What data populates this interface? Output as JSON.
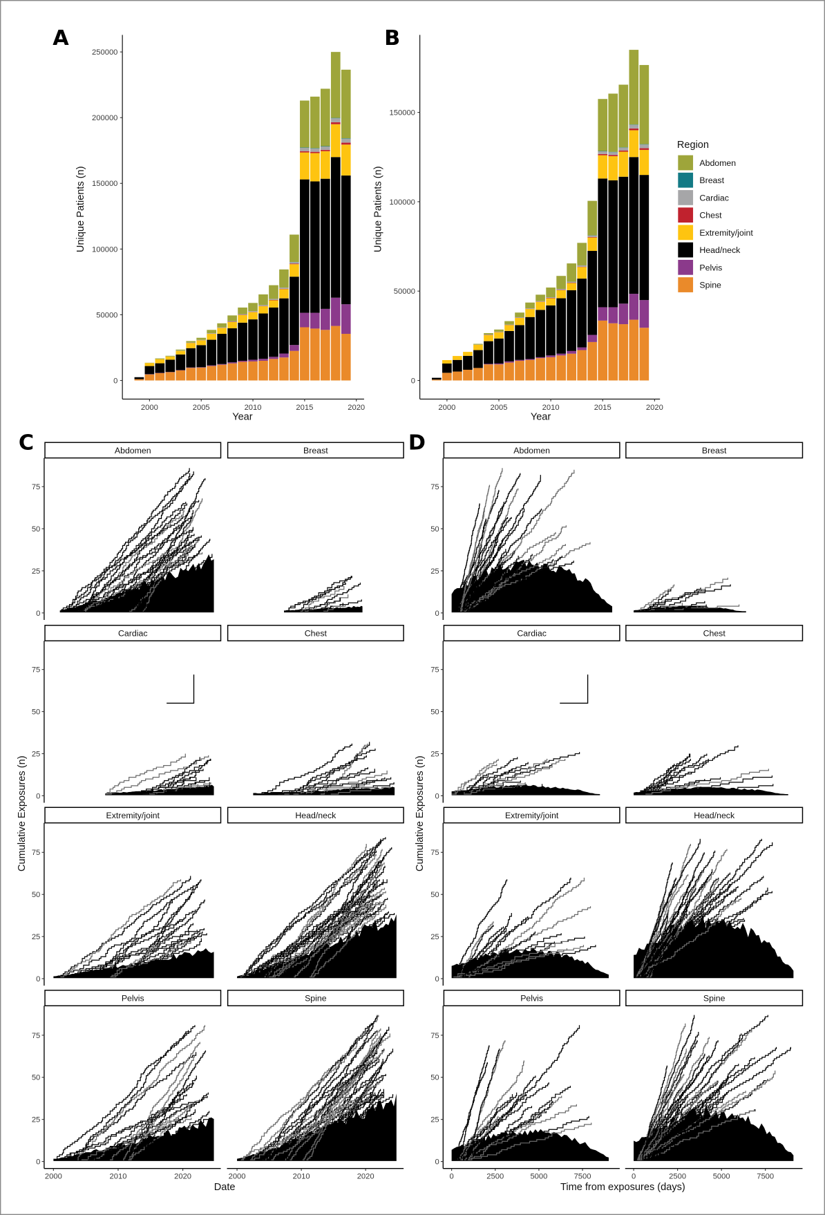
{
  "panel_letters": [
    "A",
    "B",
    "C",
    "D"
  ],
  "legend": {
    "title": "Region"
  },
  "chart_data": [
    {
      "id": "A",
      "type": "bar",
      "stacked": true,
      "xlabel": "Year",
      "ylabel": "Unique Patients (n)",
      "ylim": [
        0,
        250000
      ],
      "yticks": [
        0,
        50000,
        100000,
        150000,
        200000,
        250000
      ],
      "xticks": [
        2000,
        2005,
        2010,
        2015,
        2020
      ],
      "categories": [
        1999,
        2000,
        2001,
        2002,
        2003,
        2004,
        2005,
        2006,
        2007,
        2008,
        2009,
        2010,
        2011,
        2012,
        2013,
        2014,
        2015,
        2016,
        2017,
        2018,
        2019
      ],
      "series": [
        {
          "name": "Spine",
          "color": "#ea8a2a",
          "values": [
            1000,
            4600,
            5600,
            6300,
            7700,
            9600,
            9800,
            11000,
            12000,
            13000,
            14200,
            14500,
            15000,
            16400,
            17500,
            22500,
            40500,
            39500,
            38500,
            41500,
            35500
          ]
        },
        {
          "name": "Pelvis",
          "color": "#8b3a8b",
          "values": [
            0,
            200,
            200,
            200,
            200,
            300,
            300,
            500,
            500,
            800,
            800,
            1300,
            1500,
            1600,
            3000,
            4500,
            11000,
            12000,
            16000,
            21500,
            22500
          ]
        },
        {
          "name": "Head/neck",
          "color": "#000000",
          "values": [
            1500,
            6200,
            7300,
            9300,
            11900,
            14700,
            16800,
            19500,
            23000,
            25900,
            29000,
            30700,
            34500,
            37500,
            42000,
            52000,
            101500,
            100000,
            99000,
            107000,
            98000
          ]
        },
        {
          "name": "Extremity/joint",
          "color": "#fec410",
          "values": [
            0,
            2300,
            3100,
            2400,
            2700,
            3900,
            3600,
            4500,
            4500,
            4800,
            5800,
            5500,
            5500,
            5500,
            7000,
            9500,
            20500,
            21500,
            21000,
            25000,
            23500
          ]
        },
        {
          "name": "Chest",
          "color": "#c0222e",
          "values": [
            0,
            0,
            0,
            0,
            0,
            100,
            100,
            100,
            100,
            200,
            200,
            200,
            200,
            300,
            300,
            400,
            1000,
            1000,
            1000,
            1500,
            1500
          ]
        },
        {
          "name": "Cardiac",
          "color": "#a6a6a8",
          "values": [
            0,
            0,
            0,
            100,
            200,
            300,
            300,
            400,
            400,
            500,
            500,
            600,
            700,
            800,
            900,
            1200,
            2500,
            2500,
            2500,
            3000,
            3000
          ]
        },
        {
          "name": "Breast",
          "color": "#137a85",
          "values": [
            0,
            0,
            0,
            0,
            0,
            0,
            0,
            0,
            0,
            0,
            0,
            0,
            0,
            0,
            0,
            100,
            300,
            300,
            300,
            300,
            300
          ]
        },
        {
          "name": "Abdomen",
          "color": "#9ea53a",
          "values": [
            0,
            200,
            600,
            500,
            800,
            1100,
            1600,
            2500,
            3000,
            4300,
            5000,
            6200,
            8100,
            10400,
            13800,
            20800,
            35700,
            39200,
            43700,
            50200,
            52200
          ]
        }
      ]
    },
    {
      "id": "B",
      "type": "bar",
      "stacked": true,
      "xlabel": "Year",
      "ylabel": "Unique Patients (n)",
      "ylim": [
        0,
        185000
      ],
      "yticks": [
        0,
        50000,
        100000,
        150000
      ],
      "xticks": [
        2000,
        2005,
        2010,
        2015,
        2020
      ],
      "categories": [
        1999,
        2000,
        2001,
        2002,
        2003,
        2004,
        2005,
        2006,
        2007,
        2008,
        2009,
        2010,
        2011,
        2012,
        2013,
        2014,
        2015,
        2016,
        2017,
        2018,
        2019
      ],
      "series": [
        {
          "name": "Spine",
          "color": "#ea8a2a",
          "values": [
            500,
            4300,
            5000,
            6000,
            7000,
            9000,
            9000,
            10000,
            11000,
            11500,
            12500,
            13000,
            14000,
            15000,
            17000,
            21500,
            33500,
            32000,
            31500,
            34000,
            29500
          ]
        },
        {
          "name": "Pelvis",
          "color": "#8b3a8b",
          "values": [
            0,
            0,
            0,
            0,
            0,
            300,
            500,
            700,
            500,
            500,
            500,
            1000,
            1000,
            1500,
            1500,
            4000,
            7500,
            9000,
            11500,
            14500,
            15500
          ]
        },
        {
          "name": "Head/neck",
          "color": "#000000",
          "values": [
            1000,
            5200,
            6500,
            7800,
            10000,
            12700,
            14000,
            17000,
            19500,
            23500,
            26500,
            28000,
            31000,
            34000,
            38500,
            47000,
            72000,
            71000,
            71000,
            76500,
            70000
          ]
        },
        {
          "name": "Extremity/joint",
          "color": "#fec410",
          "values": [
            0,
            1900,
            2200,
            2200,
            3000,
            3400,
            3500,
            3300,
            4000,
            4500,
            4500,
            4000,
            4500,
            4000,
            6500,
            7500,
            13000,
            13500,
            14000,
            15000,
            14000
          ]
        },
        {
          "name": "Chest",
          "color": "#c0222e",
          "values": [
            0,
            0,
            0,
            0,
            0,
            100,
            100,
            100,
            100,
            100,
            100,
            200,
            200,
            200,
            200,
            300,
            700,
            700,
            700,
            1000,
            1000
          ]
        },
        {
          "name": "Cardiac",
          "color": "#a6a6a8",
          "values": [
            0,
            0,
            0,
            0,
            100,
            200,
            200,
            200,
            300,
            300,
            300,
            400,
            500,
            600,
            700,
            800,
            1500,
            1500,
            1500,
            2000,
            2000
          ]
        },
        {
          "name": "Breast",
          "color": "#137a85",
          "values": [
            0,
            0,
            0,
            0,
            0,
            0,
            0,
            0,
            0,
            0,
            0,
            0,
            0,
            0,
            0,
            100,
            200,
            200,
            200,
            200,
            200
          ]
        },
        {
          "name": "Abdomen",
          "color": "#9ea53a",
          "values": [
            0,
            0,
            0,
            0,
            400,
            800,
            1200,
            1900,
            2600,
            3200,
            3600,
            5400,
            7300,
            10200,
            12600,
            19300,
            29100,
            32600,
            35100,
            41800,
            44300
          ]
        }
      ]
    },
    {
      "id": "C",
      "type": "line",
      "style": "step",
      "xlabel": "Date",
      "ylabel": "Cumulative Exposures (n)",
      "xticks": [
        2000,
        2010,
        2020
      ],
      "yticks": [
        0,
        25,
        50,
        75
      ],
      "facets": [
        {
          "name": "Abdomen",
          "x_range": [
            2001,
            2024.8
          ],
          "dense_level": 33,
          "max_value": 85,
          "n_lines": 28
        },
        {
          "name": "Breast",
          "x_range": [
            2007.3,
            2019.5
          ],
          "dense_level": 4,
          "max_value": 22,
          "n_lines": 10
        },
        {
          "name": "Cardiac",
          "x_range": [
            2008,
            2024.8
          ],
          "dense_level": 6,
          "max_value": 25,
          "n_lines": 14,
          "special": [
            [
              2017.5,
              55
            ],
            [
              2021.7,
              55
            ],
            [
              2021.7,
              72
            ]
          ]
        },
        {
          "name": "Chest",
          "x_range": [
            2002.5,
            2024.5
          ],
          "dense_level": 5,
          "max_value": 31,
          "n_lines": 16
        },
        {
          "name": "Extremity/joint",
          "x_range": [
            2000,
            2024.8
          ],
          "dense_level": 18,
          "max_value": 61,
          "n_lines": 20
        },
        {
          "name": "Head/neck",
          "x_range": [
            2000,
            2024.8
          ],
          "dense_level": 38,
          "max_value": 84,
          "n_lines": 40
        },
        {
          "name": "Pelvis",
          "x_range": [
            2000,
            2024.8
          ],
          "dense_level": 25,
          "max_value": 81,
          "n_lines": 22
        },
        {
          "name": "Spine",
          "x_range": [
            2000,
            2024.8
          ],
          "dense_level": 38,
          "max_value": 87,
          "n_lines": 40
        }
      ]
    },
    {
      "id": "D",
      "type": "line",
      "style": "step",
      "xlabel": "Time from exposures (days)",
      "ylabel": "Cumulative Exposures (n)",
      "xticks": [
        0,
        2500,
        5000,
        7500
      ],
      "yticks": [
        0,
        25,
        50,
        75
      ],
      "facets": [
        {
          "name": "Abdomen",
          "x_range": [
            0,
            9200
          ],
          "dense_level": 30,
          "max_value": 85,
          "n_lines": 30
        },
        {
          "name": "Breast",
          "x_range": [
            0,
            6400
          ],
          "dense_level": 4,
          "max_value": 21,
          "n_lines": 10
        },
        {
          "name": "Cardiac",
          "x_range": [
            0,
            8500
          ],
          "dense_level": 6,
          "max_value": 26,
          "n_lines": 14,
          "special": [
            [
              6200,
              55
            ],
            [
              7800,
              55
            ],
            [
              7800,
              72
            ]
          ]
        },
        {
          "name": "Chest",
          "x_range": [
            0,
            8800
          ],
          "dense_level": 5,
          "max_value": 30,
          "n_lines": 16
        },
        {
          "name": "Extremity/joint",
          "x_range": [
            0,
            9000
          ],
          "dense_level": 17,
          "max_value": 60,
          "n_lines": 20
        },
        {
          "name": "Head/neck",
          "x_range": [
            0,
            9100
          ],
          "dense_level": 35,
          "max_value": 83,
          "n_lines": 40
        },
        {
          "name": "Pelvis",
          "x_range": [
            0,
            9000
          ],
          "dense_level": 18,
          "max_value": 81,
          "n_lines": 22
        },
        {
          "name": "Spine",
          "x_range": [
            0,
            9100
          ],
          "dense_level": 30,
          "max_value": 87,
          "n_lines": 40
        }
      ]
    }
  ]
}
